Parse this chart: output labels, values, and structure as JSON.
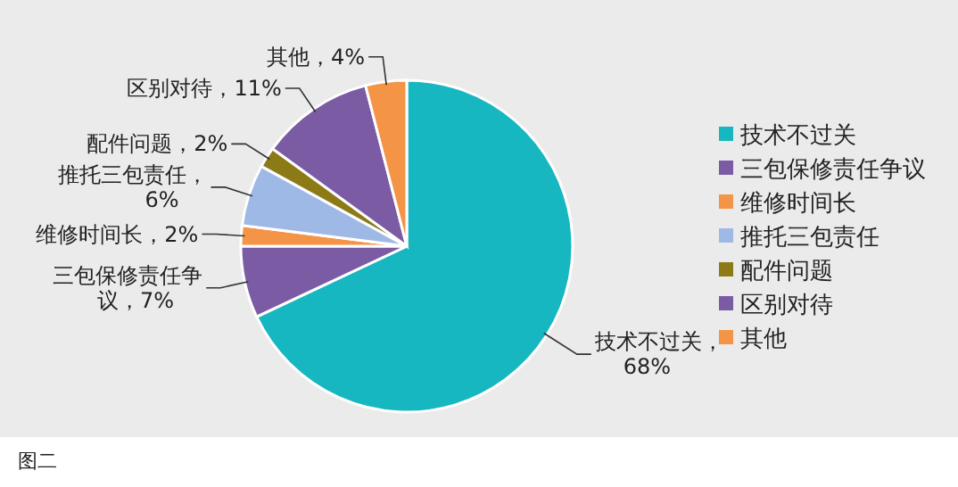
{
  "chart_data": {
    "type": "pie",
    "categories": [
      "技术不过关",
      "三包保修责任争议",
      "维修时间长",
      "推托三包责任",
      "配件问题",
      "区别对待",
      "其他"
    ],
    "values": [
      68,
      7,
      2,
      6,
      2,
      11,
      4
    ],
    "colors": [
      "#17b7c1",
      "#7a5ba4",
      "#f39447",
      "#9fb9e6",
      "#8c7a16",
      "#7a5ba4",
      "#f39447"
    ],
    "value_labels": [
      "技术不过关，68%",
      "三包保修责任争议，7%",
      "维修时间长，2%",
      "推托三包责任，6%",
      "配件问题，2%",
      "区别对待，11%",
      "其他，4%"
    ],
    "legend": "right",
    "annotations": [
      "图二"
    ]
  }
}
